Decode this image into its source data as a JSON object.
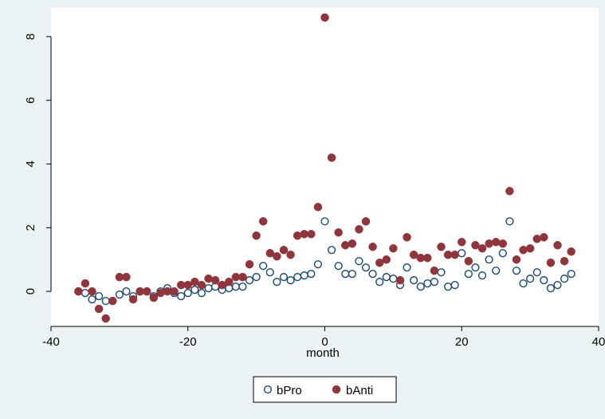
{
  "chart_data": {
    "type": "scatter",
    "xlabel": "month",
    "ylabel": "",
    "xlim": [
      -40,
      40
    ],
    "ylim": [
      -1.1,
      8.9
    ],
    "x_ticks": [
      -40,
      -20,
      0,
      20,
      40
    ],
    "x_tick_labels": [
      "-40",
      "-20",
      "0",
      "20",
      "40"
    ],
    "y_ticks": [
      0,
      2,
      4,
      6,
      8
    ],
    "y_tick_labels": [
      "0",
      "2",
      "4",
      "6",
      "8"
    ],
    "grid": false,
    "legend": {
      "position": "bottom-center",
      "entries": [
        "bPro",
        "bAnti"
      ]
    },
    "series": [
      {
        "name": "bPro",
        "marker": "hollow-circle",
        "color": "#1a476f",
        "x": [
          -36,
          -35,
          -34,
          -33,
          -32,
          -31,
          -30,
          -29,
          -28,
          -27,
          -26,
          -25,
          -24,
          -23,
          -22,
          -21,
          -20,
          -19,
          -18,
          -17,
          -16,
          -15,
          -14,
          -13,
          -12,
          -11,
          -10,
          -9,
          -8,
          -7,
          -6,
          -5,
          -4,
          -3,
          -2,
          -1,
          0,
          1,
          2,
          3,
          4,
          5,
          6,
          7,
          8,
          9,
          10,
          11,
          12,
          13,
          14,
          15,
          16,
          17,
          18,
          19,
          20,
          21,
          22,
          23,
          24,
          25,
          26,
          27,
          28,
          29,
          30,
          31,
          32,
          33,
          34,
          35,
          36
        ],
        "values": [
          0.0,
          -0.05,
          -0.25,
          -0.15,
          -0.3,
          -0.3,
          -0.1,
          0.0,
          -0.15,
          0.0,
          0.0,
          -0.15,
          0.0,
          0.1,
          -0.05,
          -0.15,
          -0.05,
          0.05,
          -0.05,
          0.1,
          0.15,
          0.05,
          0.1,
          0.15,
          0.15,
          0.35,
          0.45,
          0.8,
          0.6,
          0.3,
          0.45,
          0.35,
          0.45,
          0.5,
          0.55,
          0.85,
          2.2,
          1.3,
          0.8,
          0.55,
          0.55,
          0.95,
          0.75,
          0.55,
          0.3,
          0.45,
          0.4,
          0.2,
          0.75,
          0.35,
          0.15,
          0.25,
          0.3,
          0.6,
          0.15,
          0.2,
          1.2,
          0.55,
          0.75,
          0.5,
          1.0,
          0.65,
          1.2,
          2.2,
          0.65,
          0.25,
          0.4,
          0.6,
          0.35,
          0.1,
          0.2,
          0.4,
          0.55
        ]
      },
      {
        "name": "bAnti",
        "marker": "filled-circle",
        "color": "#90353b",
        "x": [
          -36,
          -35,
          -34,
          -33,
          -32,
          -31,
          -30,
          -29,
          -28,
          -27,
          -26,
          -25,
          -24,
          -23,
          -22,
          -21,
          -20,
          -19,
          -18,
          -17,
          -16,
          -15,
          -14,
          -13,
          -12,
          -11,
          -10,
          -9,
          -8,
          -7,
          -6,
          -5,
          -4,
          -3,
          -2,
          -1,
          0,
          1,
          2,
          3,
          4,
          5,
          6,
          7,
          8,
          9,
          10,
          11,
          12,
          13,
          14,
          15,
          16,
          17,
          18,
          19,
          20,
          21,
          22,
          23,
          24,
          25,
          26,
          27,
          28,
          29,
          30,
          31,
          32,
          33,
          34,
          35,
          36
        ],
        "values": [
          0.0,
          0.25,
          0.0,
          -0.55,
          -0.85,
          -0.3,
          0.45,
          0.45,
          -0.25,
          0.0,
          0.0,
          -0.2,
          -0.05,
          0.0,
          0.0,
          0.2,
          0.2,
          0.3,
          0.2,
          0.4,
          0.35,
          0.2,
          0.3,
          0.45,
          0.45,
          0.85,
          1.75,
          2.2,
          1.2,
          1.1,
          1.3,
          1.15,
          1.75,
          1.8,
          1.8,
          2.65,
          8.6,
          4.2,
          1.85,
          1.45,
          1.5,
          1.95,
          2.2,
          1.4,
          0.9,
          1.0,
          1.35,
          0.35,
          1.7,
          1.15,
          1.05,
          1.05,
          0.65,
          1.4,
          1.15,
          1.15,
          1.55,
          0.95,
          1.45,
          1.35,
          1.5,
          1.55,
          1.5,
          3.15,
          1.0,
          1.3,
          1.35,
          1.65,
          1.7,
          0.9,
          1.45,
          0.95,
          1.25
        ]
      }
    ]
  }
}
